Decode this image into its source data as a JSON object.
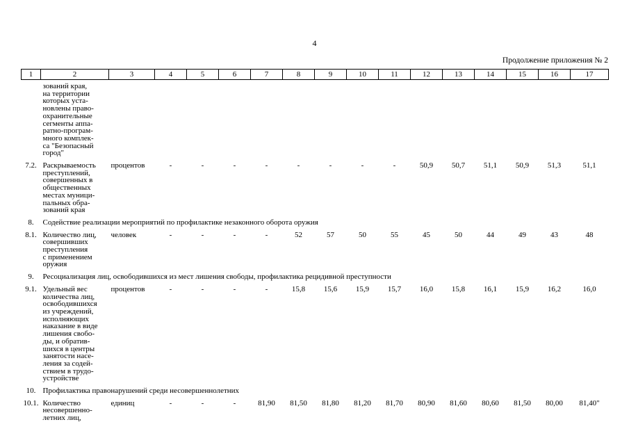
{
  "page": {
    "number": "4",
    "continuation_note": "Продолжение приложения № 2"
  },
  "table": {
    "header_columns": [
      "1",
      "2",
      "3",
      "4",
      "5",
      "6",
      "7",
      "8",
      "9",
      "10",
      "11",
      "12",
      "13",
      "14",
      "15",
      "16",
      "17"
    ],
    "rows": [
      {
        "type": "data",
        "num": "",
        "name_lines": [
          "зований края,",
          "на территории",
          "которых уста-",
          "новлены право-",
          "охранительные",
          "сегменты аппа-",
          "ратно-програм-",
          "много комплек-",
          "са \"Безопасный",
          "город\""
        ],
        "unit": "",
        "values": [
          "",
          "",
          "",
          "",
          "",
          "",
          "",
          "",
          "",
          "",
          "",
          "",
          "",
          ""
        ]
      },
      {
        "type": "data",
        "num": "7.2.",
        "name_lines": [
          "Раскрываемость",
          "преступлений,",
          "совершенных в",
          "общественных",
          "местах муници-",
          "пальных обра-",
          "зований края"
        ],
        "unit": "процентов",
        "values": [
          "-",
          "-",
          "-",
          "-",
          "-",
          "-",
          "-",
          "-",
          "50,9",
          "50,7",
          "51,1",
          "50,9",
          "51,3",
          "51,1"
        ]
      },
      {
        "type": "section",
        "num": "8.",
        "title": "Содействие реализации мероприятий по профилактике незаконного оборота оружия"
      },
      {
        "type": "data",
        "num": "8.1.",
        "name_lines": [
          "Количество лиц,",
          "совершивших",
          "преступления",
          "с применением",
          "оружия"
        ],
        "unit": "человек",
        "values": [
          "-",
          "-",
          "-",
          "-",
          "52",
          "57",
          "50",
          "55",
          "45",
          "50",
          "44",
          "49",
          "43",
          "48"
        ]
      },
      {
        "type": "section",
        "num": "9.",
        "title": "Ресоциализация лиц, освободившихся из мест лишения свободы, профилактика рецидивной преступности"
      },
      {
        "type": "data",
        "num": "9.1.",
        "name_lines": [
          "Удельный вес",
          "количества лиц,",
          "освободившихся",
          "из учреждений,",
          "исполняющих",
          "наказание в виде",
          "лишения свобо-",
          "ды, и обратив-",
          "шихся в центры",
          "занятости насе-",
          "ления за содей-",
          "ствием в трудо-",
          "устройстве"
        ],
        "unit": "процентов",
        "values": [
          "-",
          "-",
          "-",
          "-",
          "15,8",
          "15,6",
          "15,9",
          "15,7",
          "16,0",
          "15,8",
          "16,1",
          "15,9",
          "16,2",
          "16,0"
        ]
      },
      {
        "type": "section",
        "num": "10.",
        "title": "Профилактика правонарушений среди несовершеннолетних"
      },
      {
        "type": "data",
        "num": "10.1.",
        "name_lines": [
          "Количество",
          "несовершенно-",
          "летних лиц,"
        ],
        "unit": "единиц",
        "values": [
          "-",
          "-",
          "-",
          "81,90",
          "81,50",
          "81,80",
          "81,20",
          "81,70",
          "80,90",
          "81,60",
          "80,60",
          "81,50",
          "80,00",
          "81,40\""
        ]
      }
    ]
  }
}
